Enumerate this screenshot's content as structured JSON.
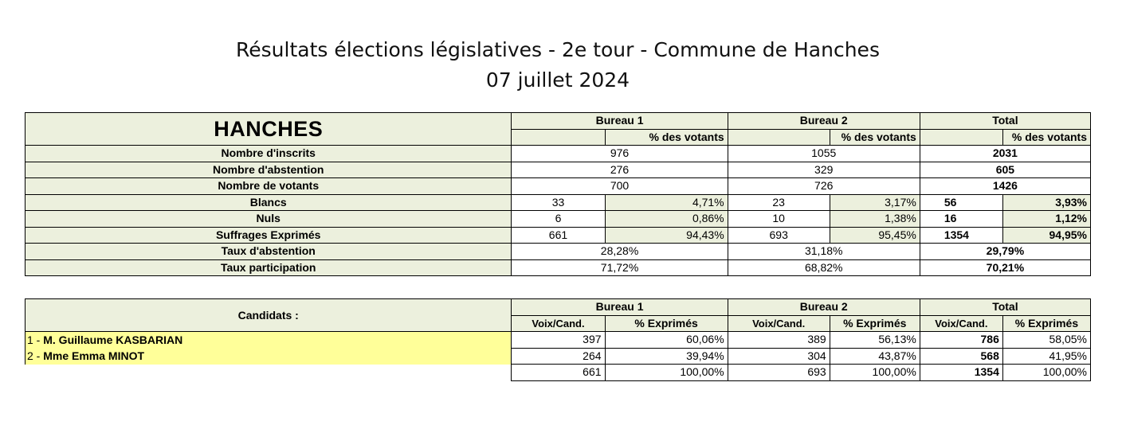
{
  "title": "Résultats élections législatives - 2e tour  - Commune de Hanches",
  "date": "07 juillet 2024",
  "main": {
    "commune": "HANCHES",
    "headers": [
      "Bureau 1",
      "Bureau 2",
      "Total"
    ],
    "pct_header": "% des votants",
    "rows": {
      "inscrits": {
        "label": "Nombre d'inscrits",
        "b1": "976",
        "b2": "1055",
        "tot": "2031"
      },
      "abstention": {
        "label": "Nombre d'abstention",
        "b1": "276",
        "b2": "329",
        "tot": "605"
      },
      "votants": {
        "label": "Nombre de votants",
        "b1": "700",
        "b2": "726",
        "tot": "1426"
      },
      "blancs": {
        "label": "Blancs",
        "b1": "33",
        "b1p": "4,71%",
        "b2": "23",
        "b2p": "3,17%",
        "tot": "56",
        "totp": "3,93%"
      },
      "nuls": {
        "label": "Nuls",
        "b1": "6",
        "b1p": "0,86%",
        "b2": "10",
        "b2p": "1,38%",
        "tot": "16",
        "totp": "1,12%"
      },
      "exprimes": {
        "label": "Suffrages Exprimés",
        "b1": "661",
        "b1p": "94,43%",
        "b2": "693",
        "b2p": "95,45%",
        "tot": "1354",
        "totp": "94,95%"
      },
      "taux_abs": {
        "label": "Taux d'abstention",
        "b1": "28,28%",
        "b2": "31,18%",
        "tot": "29,79%"
      },
      "taux_part": {
        "label": "Taux participation",
        "b1": "71,72%",
        "b2": "68,82%",
        "tot": "70,21%"
      }
    }
  },
  "candidates": {
    "label": "Candidats :",
    "headers": [
      "Bureau 1",
      "Bureau 2",
      "Total"
    ],
    "voix_header": "Voix/Cand.",
    "pct_header": "% Exprimés",
    "list": [
      {
        "num": "1 - ",
        "name": "M. Guillaume KASBARIAN",
        "b1": "397",
        "b1p": "60,06%",
        "b2": "389",
        "b2p": "56,13%",
        "tot": "786",
        "totp": "58,05%"
      },
      {
        "num": "2 - ",
        "name": "Mme Emma MINOT",
        "b1": "264",
        "b1p": "39,94%",
        "b2": "304",
        "b2p": "43,87%",
        "tot": "568",
        "totp": "41,95%"
      }
    ],
    "totals": {
      "b1": "661",
      "b1p": "100,00%",
      "b2": "693",
      "b2p": "100,00%",
      "tot": "1354",
      "totp": "100,00%"
    }
  }
}
